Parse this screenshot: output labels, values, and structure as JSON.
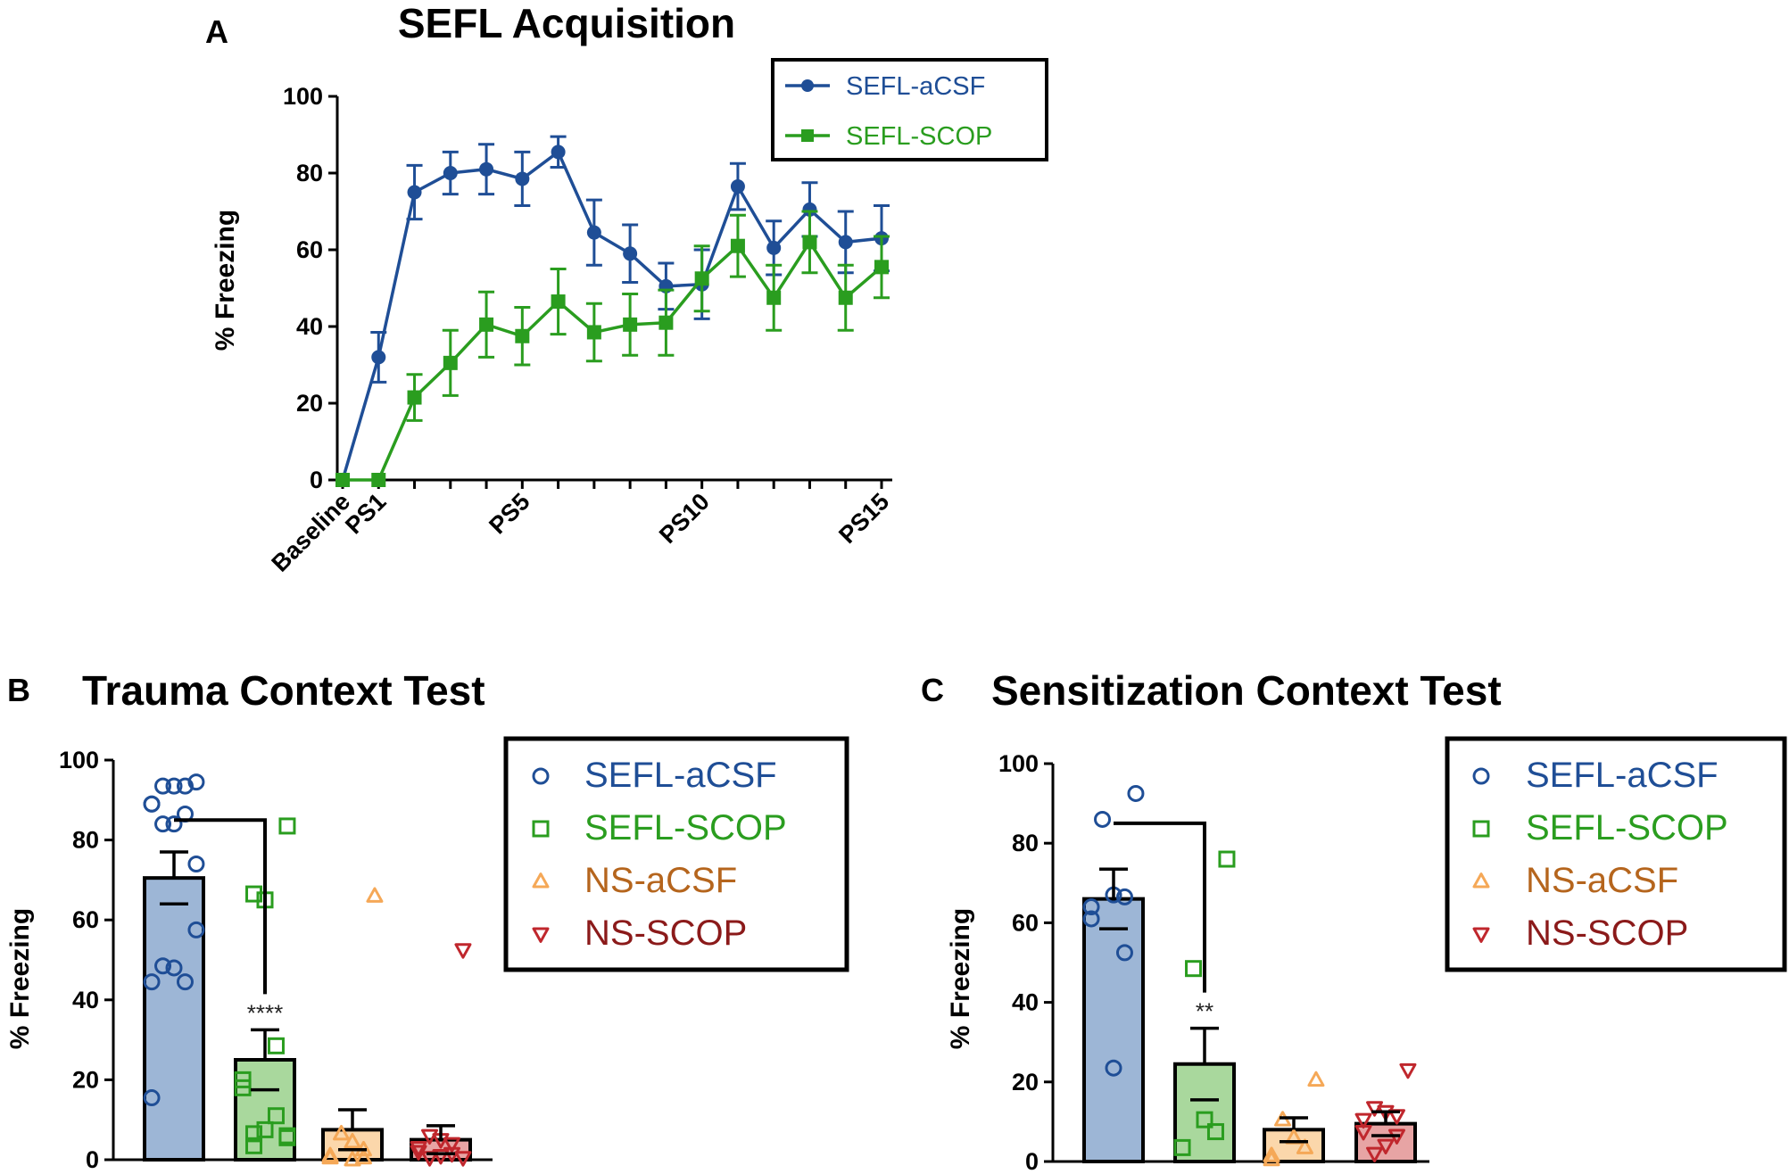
{
  "colors": {
    "aCSF": "#1f4e96",
    "SCOP": "#2a9d1f",
    "NSaCSF": "#f5a857",
    "NSSCOP": "#c0272d",
    "bar_aCSF": "#9db6d6",
    "bar_SCOP": "#a9d89d",
    "bar_NSaCSF": "#fbd7ab",
    "bar_NSSCOP": "#e7a4a4"
  },
  "chart_data": [
    {
      "id": "A",
      "type": "line",
      "panel_letter": "A",
      "title": "SEFL Acquisition",
      "xlabel": "",
      "ylabel": "%  Freezing",
      "ylim": [
        0,
        100
      ],
      "yticks": [
        "0",
        "20",
        "40",
        "60",
        "80",
        "100"
      ],
      "x_tick_labels": [
        {
          "index": 0,
          "label": "Baseline"
        },
        {
          "index": 1,
          "label": "PS1"
        },
        {
          "index": 5,
          "label": "PS5"
        },
        {
          "index": 10,
          "label": "PS10"
        },
        {
          "index": 15,
          "label": "PS15"
        }
      ],
      "series": [
        {
          "name": "SEFL-aCSF",
          "color_key": "aCSF",
          "marker": "circle",
          "values": [
            0,
            32,
            75,
            80,
            81,
            78.5,
            85.5,
            64.5,
            59,
            50.5,
            51,
            76.5,
            60.5,
            70.5,
            62,
            63
          ],
          "sem": [
            0,
            6.5,
            7,
            5.5,
            6.5,
            7,
            4,
            8.5,
            7.5,
            6,
            9,
            6,
            7,
            7,
            8,
            8.5
          ]
        },
        {
          "name": "SEFL-SCOP",
          "color_key": "SCOP",
          "marker": "square",
          "values": [
            0,
            0,
            21.5,
            30.5,
            40.5,
            37.5,
            46.5,
            38.5,
            40.5,
            41,
            52.5,
            61,
            47.5,
            62,
            47.5,
            55.5
          ],
          "sem": [
            0,
            0,
            6,
            8.5,
            8.5,
            7.5,
            8.5,
            7.5,
            8,
            8.5,
            8.5,
            8,
            8.5,
            8,
            8.5,
            8
          ]
        }
      ],
      "legend_position": "top-right"
    },
    {
      "id": "B",
      "type": "bar",
      "panel_letter": "B",
      "title": "Trauma Context Test",
      "ylabel": "% Freezing",
      "ylim": [
        0,
        100
      ],
      "yticks": [
        "0",
        "20",
        "40",
        "60",
        "80",
        "100"
      ],
      "categories": [
        "SEFL-aCSF",
        "SEFL-SCOP",
        "NS-aCSF",
        "NS-SCOP"
      ],
      "color_keys": [
        "aCSF",
        "SCOP",
        "NSaCSF",
        "NSSCOP"
      ],
      "bar_color_keys": [
        "bar_aCSF",
        "bar_SCOP",
        "bar_NSaCSF",
        "bar_NSSCOP"
      ],
      "markers": [
        "circle",
        "square",
        "triangle",
        "triangle-down"
      ],
      "values": [
        70.5,
        25,
        7.5,
        5
      ],
      "sem": [
        6.5,
        7.5,
        5,
        3.5
      ],
      "points": [
        [
          94.5,
          93.5,
          93.5,
          93.5,
          89,
          89,
          86.5,
          84,
          84,
          74,
          57.5,
          48.5,
          48,
          44.5,
          44.5,
          15.5
        ],
        [
          83.5,
          66.5,
          65,
          28.5,
          20,
          18,
          11,
          7.5,
          6.5,
          6,
          5.5,
          3.5
        ],
        [
          66,
          6.5,
          4.5,
          2.5,
          1,
          0.5,
          0.5,
          0
        ],
        [
          52.5,
          6,
          5,
          4,
          3,
          2,
          1.5,
          1,
          0.5,
          0.5
        ]
      ],
      "comparison": {
        "from": 0,
        "to": 1,
        "y": 85,
        "label": "****"
      },
      "legend": [
        "SEFL-aCSF",
        "SEFL-SCOP",
        "NS-aCSF",
        "NS-SCOP"
      ],
      "legend_position": "top-right"
    },
    {
      "id": "C",
      "type": "bar",
      "panel_letter": "C",
      "title": "Sensitization Context Test",
      "ylabel": "% Freezing",
      "ylim": [
        0,
        100
      ],
      "yticks": [
        "0",
        "20",
        "40",
        "60",
        "80",
        "100"
      ],
      "categories": [
        "SEFL-aCSF",
        "SEFL-SCOP",
        "NS-aCSF",
        "NS-SCOP"
      ],
      "color_keys": [
        "aCSF",
        "SCOP",
        "NSaCSF",
        "NSSCOP"
      ],
      "bar_color_keys": [
        "bar_aCSF",
        "bar_SCOP",
        "bar_NSaCSF",
        "bar_NSSCOP"
      ],
      "markers": [
        "circle",
        "square",
        "triangle",
        "triangle-down"
      ],
      "values": [
        66,
        24.5,
        8,
        9.5
      ],
      "sem": [
        7.5,
        9,
        3,
        3
      ],
      "points": [
        [
          92.5,
          86,
          67,
          66.5,
          64,
          61,
          52.5,
          23.5
        ],
        [
          76,
          48.5,
          10.5,
          7.5,
          3.5
        ],
        [
          20.5,
          10.5,
          6,
          3.5,
          1.5,
          0.5
        ],
        [
          23,
          13.5,
          12.5,
          11.5,
          10.5,
          7.5,
          6.5,
          4,
          2
        ]
      ],
      "comparison": {
        "from": 0,
        "to": 1,
        "y": 85,
        "label": "**"
      },
      "legend": [
        "SEFL-aCSF",
        "SEFL-SCOP",
        "NS-aCSF",
        "NS-SCOP"
      ],
      "legend_position": "top-right"
    }
  ]
}
